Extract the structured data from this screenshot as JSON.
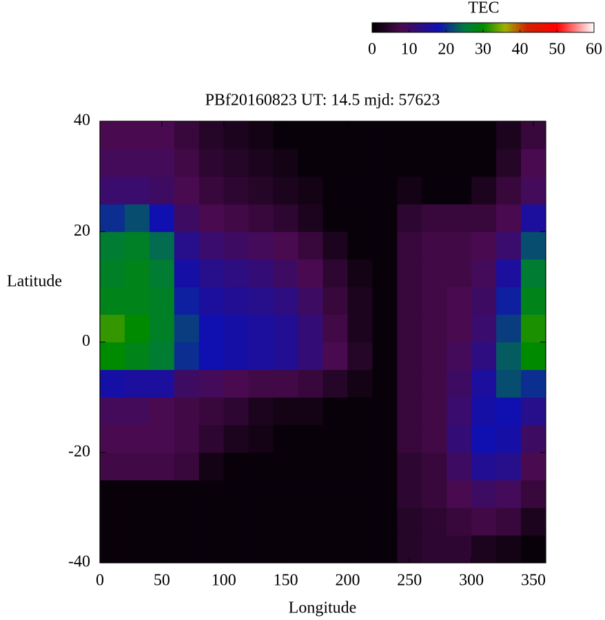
{
  "chart_data": {
    "type": "heatmap",
    "title": "PBf20160823  UT: 14.5  mjd: 57623",
    "x_label": "Longitude",
    "y_label": "Latitude",
    "colorbar_label": "TEC",
    "xbins": [
      0,
      20,
      40,
      60,
      80,
      100,
      120,
      140,
      160,
      180,
      200,
      220,
      240,
      260,
      280,
      300,
      320,
      340,
      360
    ],
    "ybins": [
      -40,
      -35,
      -30,
      -25,
      -20,
      -15,
      -10,
      -5,
      0,
      5,
      10,
      15,
      20,
      25,
      30,
      35,
      40
    ],
    "values": [
      [
        1,
        1,
        1,
        1,
        1,
        1,
        1,
        1,
        1,
        1,
        1,
        1,
        4,
        5,
        5,
        3,
        2,
        1
      ],
      [
        1,
        1,
        1,
        1,
        1,
        1,
        1,
        1,
        1,
        1,
        1,
        1,
        4,
        5,
        6,
        7,
        6,
        3
      ],
      [
        1,
        1,
        1,
        1,
        1,
        1,
        1,
        1,
        1,
        1,
        1,
        1,
        5,
        6,
        8,
        10,
        9,
        6
      ],
      [
        7,
        7,
        7,
        6,
        2,
        1,
        1,
        1,
        1,
        1,
        1,
        1,
        5,
        6,
        10,
        15,
        14,
        8
      ],
      [
        8,
        8,
        8,
        7,
        5,
        3,
        2,
        1,
        1,
        1,
        1,
        1,
        6,
        7,
        12,
        18,
        17,
        10
      ],
      [
        9,
        9,
        8,
        7,
        6,
        5,
        3,
        2,
        2,
        1,
        1,
        1,
        6,
        7,
        11,
        17,
        18,
        14
      ],
      [
        17,
        16,
        16,
        10,
        9,
        8,
        7,
        7,
        6,
        4,
        2,
        1,
        6,
        7,
        10,
        16,
        22,
        20
      ],
      [
        30,
        28,
        26,
        20,
        18,
        17,
        16,
        15,
        12,
        8,
        4,
        1,
        6,
        7,
        9,
        13,
        23,
        30
      ],
      [
        32,
        30,
        27,
        21,
        18,
        17,
        16,
        15,
        12,
        7,
        3,
        1,
        6,
        7,
        8,
        11,
        21,
        31
      ],
      [
        28,
        28,
        27,
        19,
        16,
        15,
        14,
        13,
        10,
        6,
        3,
        1,
        6,
        7,
        8,
        10,
        19,
        28
      ],
      [
        27,
        28,
        26,
        17,
        14,
        13,
        12,
        10,
        8,
        5,
        2,
        1,
        6,
        7,
        7,
        9,
        16,
        26
      ],
      [
        26,
        27,
        24,
        14,
        11,
        10,
        9,
        8,
        6,
        3,
        1,
        1,
        6,
        7,
        7,
        8,
        11,
        22
      ],
      [
        20,
        22,
        18,
        10,
        8,
        7,
        6,
        5,
        3,
        1,
        1,
        1,
        5,
        6,
        6,
        6,
        8,
        16
      ],
      [
        11,
        11,
        10,
        8,
        6,
        5,
        4,
        3,
        2,
        1,
        1,
        1,
        2,
        1,
        1,
        3,
        6,
        9
      ],
      [
        9,
        9,
        9,
        7,
        5,
        4,
        3,
        2,
        1,
        1,
        1,
        1,
        1,
        1,
        1,
        1,
        4,
        8
      ],
      [
        8,
        8,
        8,
        6,
        4,
        3,
        2,
        1,
        1,
        1,
        1,
        1,
        1,
        1,
        1,
        1,
        3,
        6
      ]
    ],
    "xlim": [
      0,
      360
    ],
    "xticks": [
      0,
      50,
      100,
      150,
      200,
      250,
      300,
      350
    ],
    "ylim": [
      -40,
      40
    ],
    "yticks": [
      -40,
      -20,
      0,
      20,
      40
    ],
    "cblim": [
      0,
      60
    ],
    "cbticks": [
      0,
      10,
      20,
      30,
      40,
      50,
      60
    ],
    "colormap": [
      {
        "value": 0,
        "color": "#000000"
      },
      {
        "value": 8,
        "color": "#4a0a50"
      },
      {
        "value": 18,
        "color": "#1010b0"
      },
      {
        "value": 25,
        "color": "#007a40"
      },
      {
        "value": 30,
        "color": "#008a00"
      },
      {
        "value": 36,
        "color": "#a0b000"
      },
      {
        "value": 42,
        "color": "#d02000"
      },
      {
        "value": 50,
        "color": "#ff0000"
      },
      {
        "value": 60,
        "color": "#ffffff"
      }
    ]
  }
}
